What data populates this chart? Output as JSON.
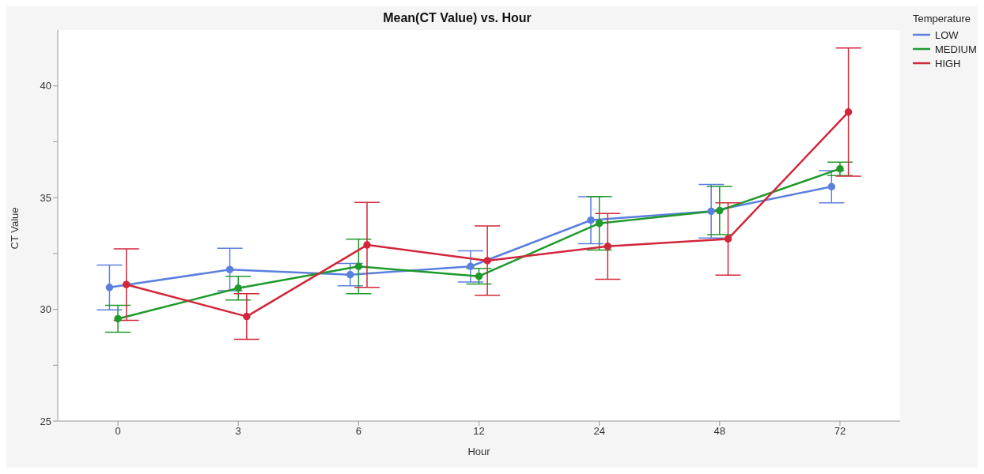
{
  "chart_data": {
    "type": "line",
    "title": "Mean(CT Value) vs. Hour",
    "xlabel": "Hour",
    "ylabel": "CT Value",
    "legend_title": "Temperature",
    "categories": [
      "0",
      "3",
      "6",
      "12",
      "24",
      "48",
      "72"
    ],
    "series": [
      {
        "name": "LOW",
        "color": "#5b7fde",
        "values": [
          30.98,
          31.78,
          31.55,
          31.92,
          33.99,
          34.39,
          35.49
        ],
        "errors": [
          1.0,
          0.95,
          0.5,
          0.7,
          1.05,
          1.2,
          0.72
        ]
      },
      {
        "name": "MEDIUM",
        "color": "#1f9a2c",
        "values": [
          29.58,
          30.95,
          31.92,
          31.48,
          33.85,
          34.42,
          36.29
        ],
        "errors": [
          0.6,
          0.53,
          1.22,
          0.35,
          1.2,
          1.08,
          0.3
        ]
      },
      {
        "name": "HIGH",
        "color": "#d2263a",
        "values": [
          31.11,
          29.68,
          32.88,
          32.18,
          32.82,
          33.15,
          38.83
        ],
        "errors": [
          1.6,
          1.02,
          1.9,
          1.55,
          1.47,
          1.62,
          2.87
        ]
      }
    ],
    "ylim": [
      25,
      42.5
    ],
    "yticks": [
      25,
      {
        "value": 27.5,
        "label": null
      },
      30,
      {
        "value": 32.5,
        "label": null
      },
      35,
      {
        "value": 37.5,
        "label": null
      },
      40
    ],
    "grid": false,
    "legend": "top right",
    "marker": "circle",
    "line_style": "solid"
  }
}
